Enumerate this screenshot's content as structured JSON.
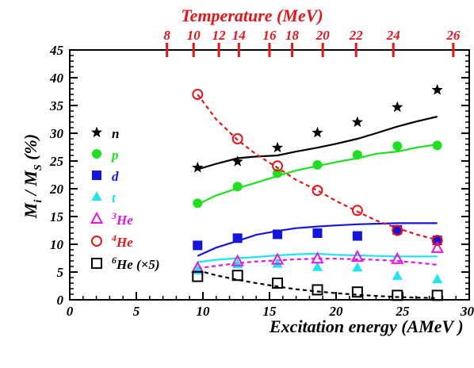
{
  "chart_data": {
    "type": "scatter",
    "xlabel": "Excitation energy (AMeV )",
    "ylabel_main": "M",
    "ylabel_sub_i": "i",
    "ylabel_mid": " / M",
    "ylabel_sub_s": "S",
    "ylabel_unit": " (%)",
    "top_axis_label": "Temperature (MeV)",
    "xlim": [
      0,
      30
    ],
    "ylim": [
      0,
      45
    ],
    "x_ticks": [
      "0",
      "5",
      "10",
      "15",
      "20",
      "25",
      "30"
    ],
    "y_ticks": [
      "0",
      "5",
      "10",
      "15",
      "20",
      "25",
      "30",
      "35",
      "40",
      "45"
    ],
    "top_ticks": [
      {
        "label": "8",
        "x": 7.3
      },
      {
        "label": "10",
        "x": 9.3
      },
      {
        "label": "12",
        "x": 11.2
      },
      {
        "label": "14",
        "x": 12.7
      },
      {
        "label": "16",
        "x": 15.0
      },
      {
        "label": "18",
        "x": 16.7
      },
      {
        "label": "20",
        "x": 19.0
      },
      {
        "label": "22",
        "x": 21.5
      },
      {
        "label": "24",
        "x": 24.3
      },
      {
        "label": "26",
        "x": 28.8
      }
    ],
    "top_color": "#e8141a",
    "series": [
      {
        "name": "n",
        "marker": "star",
        "color": "#000000",
        "x": [
          9.6,
          12.6,
          15.6,
          18.6,
          21.6,
          24.6,
          27.6
        ],
        "y": [
          23.8,
          24.9,
          27.4,
          30.1,
          32.0,
          34.7,
          37.8
        ],
        "curve_x": [
          9.6,
          11,
          12.6,
          14,
          15.6,
          17,
          18.6,
          20,
          21.6,
          23,
          24.6,
          26,
          27.6
        ],
        "curve_y": [
          23.5,
          24.5,
          25.5,
          25.8,
          26.0,
          26.7,
          27.4,
          28.1,
          29.0,
          30.0,
          31.2,
          32.1,
          33.0
        ],
        "line_style": "solid"
      },
      {
        "name": "p",
        "marker": "circle",
        "color": "#1ee01e",
        "x": [
          9.6,
          12.6,
          15.6,
          18.6,
          21.6,
          24.6,
          27.6
        ],
        "y": [
          17.4,
          20.4,
          22.8,
          24.3,
          26.1,
          27.7,
          27.8
        ],
        "curve_x": [
          9.6,
          11,
          12.6,
          14,
          15.6,
          17,
          18.6,
          20,
          21.6,
          23,
          24.6,
          26,
          27.6
        ],
        "curve_y": [
          17.2,
          18.8,
          20.1,
          21.1,
          22.3,
          23.3,
          24.1,
          24.8,
          25.5,
          26.3,
          26.7,
          27.4,
          28.0
        ],
        "line_style": "solid"
      },
      {
        "name": "d",
        "marker": "square",
        "color": "#1414dc",
        "x": [
          9.6,
          12.6,
          15.6,
          18.6,
          21.6,
          24.6,
          27.6
        ],
        "y": [
          9.8,
          11.1,
          11.8,
          12.0,
          11.5,
          12.6,
          10.7
        ],
        "curve_x": [
          9.6,
          11,
          12.6,
          14,
          15.6,
          17,
          18.6,
          20,
          21.6,
          23,
          24.6,
          26,
          27.6
        ],
        "curve_y": [
          7.9,
          9.4,
          10.6,
          11.7,
          12.4,
          12.9,
          13.2,
          13.4,
          13.6,
          13.7,
          13.8,
          13.8,
          13.8
        ],
        "line_style": "solid"
      },
      {
        "name": "t",
        "marker": "triangle",
        "color": "#1ee6f0",
        "x": [
          9.6,
          12.6,
          15.6,
          18.6,
          21.6,
          24.6,
          27.6
        ],
        "y": [
          5.3,
          6.4,
          6.5,
          5.9,
          5.8,
          4.3,
          3.7
        ],
        "curve_x": [
          9.6,
          11,
          12.6,
          14,
          15.6,
          17,
          18.6,
          20,
          21.6,
          23,
          24.6,
          26,
          27.6
        ],
        "curve_y": [
          6.8,
          7.2,
          7.5,
          7.7,
          8.0,
          8.2,
          8.3,
          8.1,
          8.0,
          7.9,
          7.8,
          7.8,
          7.8
        ],
        "line_style": "solid"
      },
      {
        "name": "3He",
        "label_sup": "3",
        "label_main": "He",
        "marker": "triangle-open",
        "color": "#e614e6",
        "x": [
          9.6,
          12.6,
          15.6,
          18.6,
          21.6,
          24.6,
          27.6
        ],
        "y": [
          5.7,
          6.9,
          7.2,
          7.4,
          7.7,
          7.3,
          9.3
        ],
        "curve_x": [
          9.6,
          11,
          12.6,
          14,
          15.6,
          17,
          18.6,
          20,
          21.6,
          23,
          24.6,
          26,
          27.6
        ],
        "curve_y": [
          5.7,
          6.1,
          6.6,
          6.9,
          7.1,
          7.3,
          7.4,
          7.4,
          7.3,
          7.2,
          7.0,
          6.7,
          6.3
        ],
        "line_style": "dashed"
      },
      {
        "name": "4He",
        "label_sup": "4",
        "label_main": "He",
        "marker": "circle-open",
        "color": "#e8141a",
        "x": [
          9.6,
          12.6,
          15.6,
          18.6,
          21.6,
          24.6,
          27.6
        ],
        "y": [
          37.0,
          29.0,
          24.1,
          19.7,
          16.1,
          12.5,
          10.7
        ],
        "curve_x": [
          9.6,
          11,
          12.6,
          14,
          15.6,
          17,
          18.6,
          20,
          21.6,
          23,
          24.6,
          26,
          27.6
        ],
        "curve_y": [
          37.0,
          32.5,
          28.8,
          26.2,
          23.8,
          21.6,
          19.7,
          17.8,
          15.9,
          14.3,
          12.9,
          11.8,
          10.8
        ],
        "line_style": "dashed"
      },
      {
        "name": "6He (x5)",
        "label_sup": "6",
        "label_main": "He (×5)",
        "marker": "square-open",
        "color": "#000000",
        "x": [
          9.6,
          12.6,
          15.6,
          18.6,
          21.6,
          24.6,
          27.6
        ],
        "y": [
          4.2,
          4.4,
          3.0,
          1.8,
          1.4,
          0.8,
          0.8
        ],
        "curve_x": [
          9.6,
          11,
          12.6,
          14,
          15.6,
          17,
          18.6,
          20,
          21.6,
          23,
          24.6,
          26,
          27.6
        ],
        "curve_y": [
          5.3,
          4.4,
          3.6,
          3.0,
          2.4,
          1.9,
          1.5,
          1.2,
          0.9,
          0.7,
          0.5,
          0.4,
          0.3
        ],
        "line_style": "dashed"
      }
    ]
  }
}
